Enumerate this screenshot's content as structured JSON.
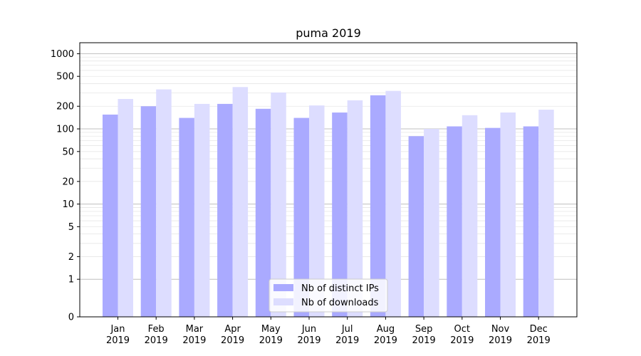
{
  "chart_data": {
    "type": "bar",
    "title": "puma 2019",
    "xlabel": "",
    "ylabel": "",
    "y_scale": "symlog",
    "ylim": [
      0,
      1400
    ],
    "y_ticks": [
      0,
      1,
      2,
      5,
      10,
      20,
      50,
      100,
      200,
      500,
      1000
    ],
    "y_tick_labels": [
      "0",
      "1",
      "2",
      "5",
      "10",
      "20",
      "50",
      "100",
      "200",
      "500",
      "1000"
    ],
    "grid": true,
    "legend_position": "bottom-center",
    "categories": [
      [
        "Jan",
        "2019"
      ],
      [
        "Feb",
        "2019"
      ],
      [
        "Mar",
        "2019"
      ],
      [
        "Apr",
        "2019"
      ],
      [
        "May",
        "2019"
      ],
      [
        "Jun",
        "2019"
      ],
      [
        "Jul",
        "2019"
      ],
      [
        "Aug",
        "2019"
      ],
      [
        "Sep",
        "2019"
      ],
      [
        "Oct",
        "2019"
      ],
      [
        "Nov",
        "2019"
      ],
      [
        "Dec",
        "2019"
      ]
    ],
    "series": [
      {
        "name": "Nb of distinct IPs",
        "color": "#aaaaff",
        "values": [
          155,
          200,
          140,
          215,
          185,
          140,
          165,
          280,
          80,
          108,
          103,
          108
        ]
      },
      {
        "name": "Nb of downloads",
        "color": "#ddddff",
        "values": [
          250,
          335,
          215,
          360,
          305,
          205,
          240,
          320,
          100,
          152,
          165,
          180
        ]
      }
    ]
  }
}
